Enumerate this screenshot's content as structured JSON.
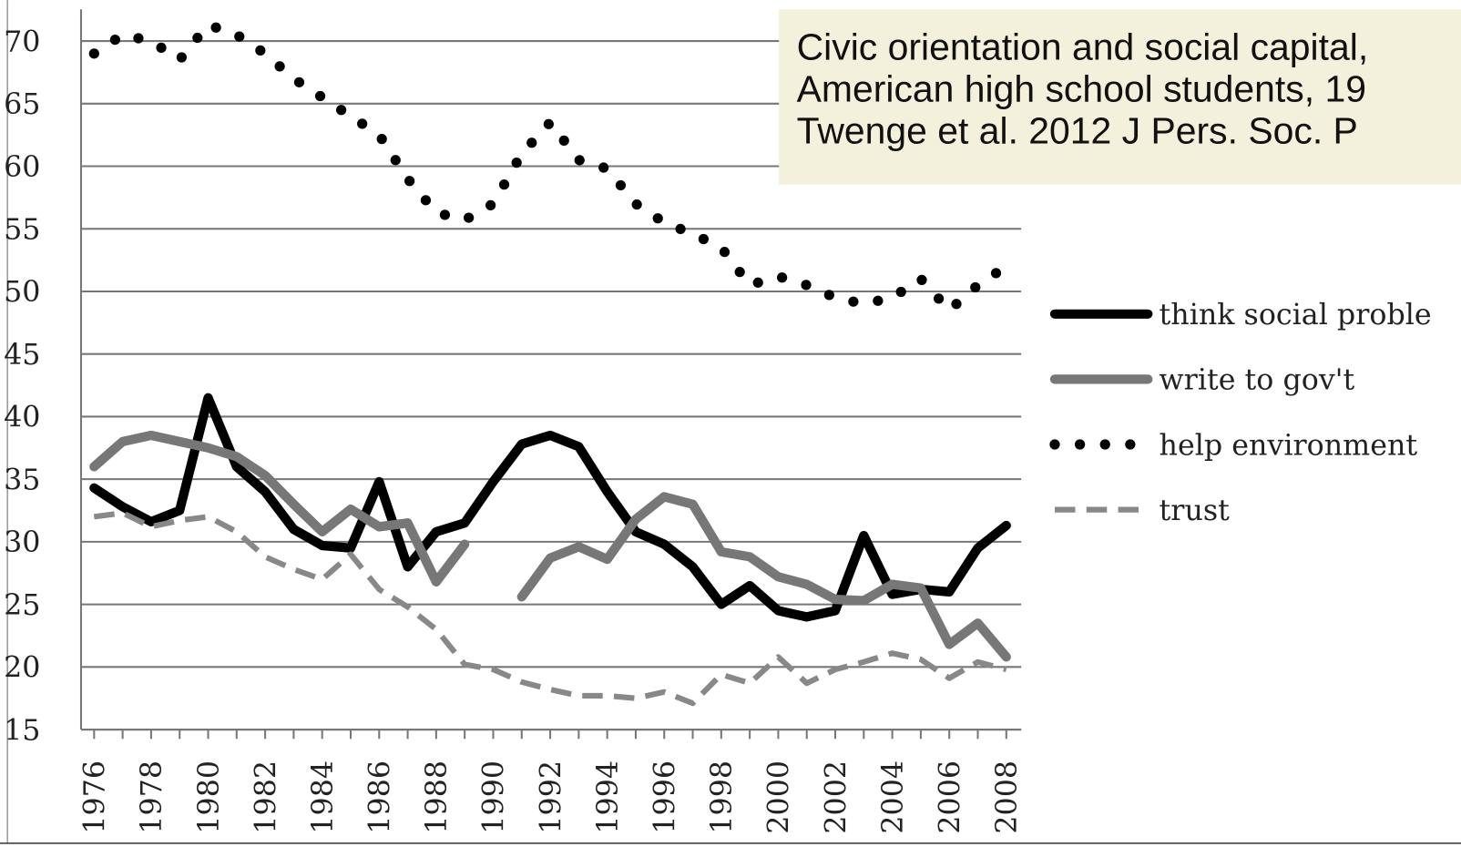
{
  "chart_data": {
    "type": "line",
    "title_lines": [
      "Civic orientation and social capital,",
      "American high school students, 19",
      "Twenge et al. 2012  J Pers. Soc. P"
    ],
    "categories": [
      "1976",
      null,
      "1978",
      null,
      "1980",
      null,
      "1982",
      null,
      "1984",
      null,
      "1986",
      null,
      "1988",
      null,
      "1990",
      null,
      "1992",
      null,
      "1994",
      null,
      "1996",
      null,
      "1998",
      null,
      "2000",
      null,
      "2002",
      null,
      "2004",
      null,
      "2006",
      null,
      "2008"
    ],
    "series": [
      {
        "name": "think social proble",
        "color": "#000000",
        "style": "solid",
        "values": [
          34.3,
          32.8,
          31.6,
          32.5,
          41.5,
          36,
          34,
          31,
          29.7,
          29.5,
          34.8,
          28,
          30.8,
          31.5,
          34.8,
          37.8,
          38.5,
          37.6,
          34,
          30.8,
          29.8,
          28,
          25,
          26.5,
          24.5,
          24,
          24.5,
          30.5,
          25.8,
          26.2,
          26,
          29.5,
          31.3
        ]
      },
      {
        "name": "write to gov't",
        "color": "#777777",
        "style": "solid",
        "values": [
          36,
          38,
          38.5,
          38,
          37.5,
          36.8,
          35.3,
          33,
          30.8,
          32.6,
          31.2,
          31.5,
          26.8,
          29.8,
          null,
          25.6,
          28.7,
          29.6,
          28.6,
          31.8,
          33.6,
          33,
          29.2,
          28.8,
          27.2,
          26.6,
          25.4,
          25.3,
          26.6,
          26.3,
          21.8,
          23.5,
          20.8
        ]
      },
      {
        "name": "help environment",
        "color": "#000000",
        "style": "dotted",
        "values": [
          69,
          70.5,
          70,
          68.5,
          71.3,
          70.5,
          69,
          67,
          65.5,
          64,
          62.5,
          59,
          56.3,
          55.7,
          57,
          61,
          63.5,
          60.5,
          59.8,
          57,
          55.5,
          54.6,
          53.5,
          50.5,
          51.2,
          50.5,
          49.5,
          49,
          49.5,
          51,
          48.5,
          50.5,
          52
        ]
      },
      {
        "name": "trust",
        "color": "#888888",
        "style": "dashed",
        "values": [
          32,
          32.3,
          31.2,
          31.7,
          32,
          30.8,
          28.8,
          27.8,
          27,
          29,
          26.2,
          24.8,
          23,
          20.2,
          19.8,
          18.8,
          18.2,
          17.7,
          17.7,
          17.5,
          18,
          17.1,
          19.4,
          18.7,
          20.8,
          18.7,
          19.8,
          20.4,
          21.1,
          20.6,
          19.1,
          20.4,
          19.8
        ]
      }
    ],
    "ylim": [
      15,
      70
    ],
    "yticks": [
      15,
      20,
      25,
      30,
      35,
      40,
      45,
      50,
      55,
      60,
      65,
      70
    ],
    "grid": true
  }
}
